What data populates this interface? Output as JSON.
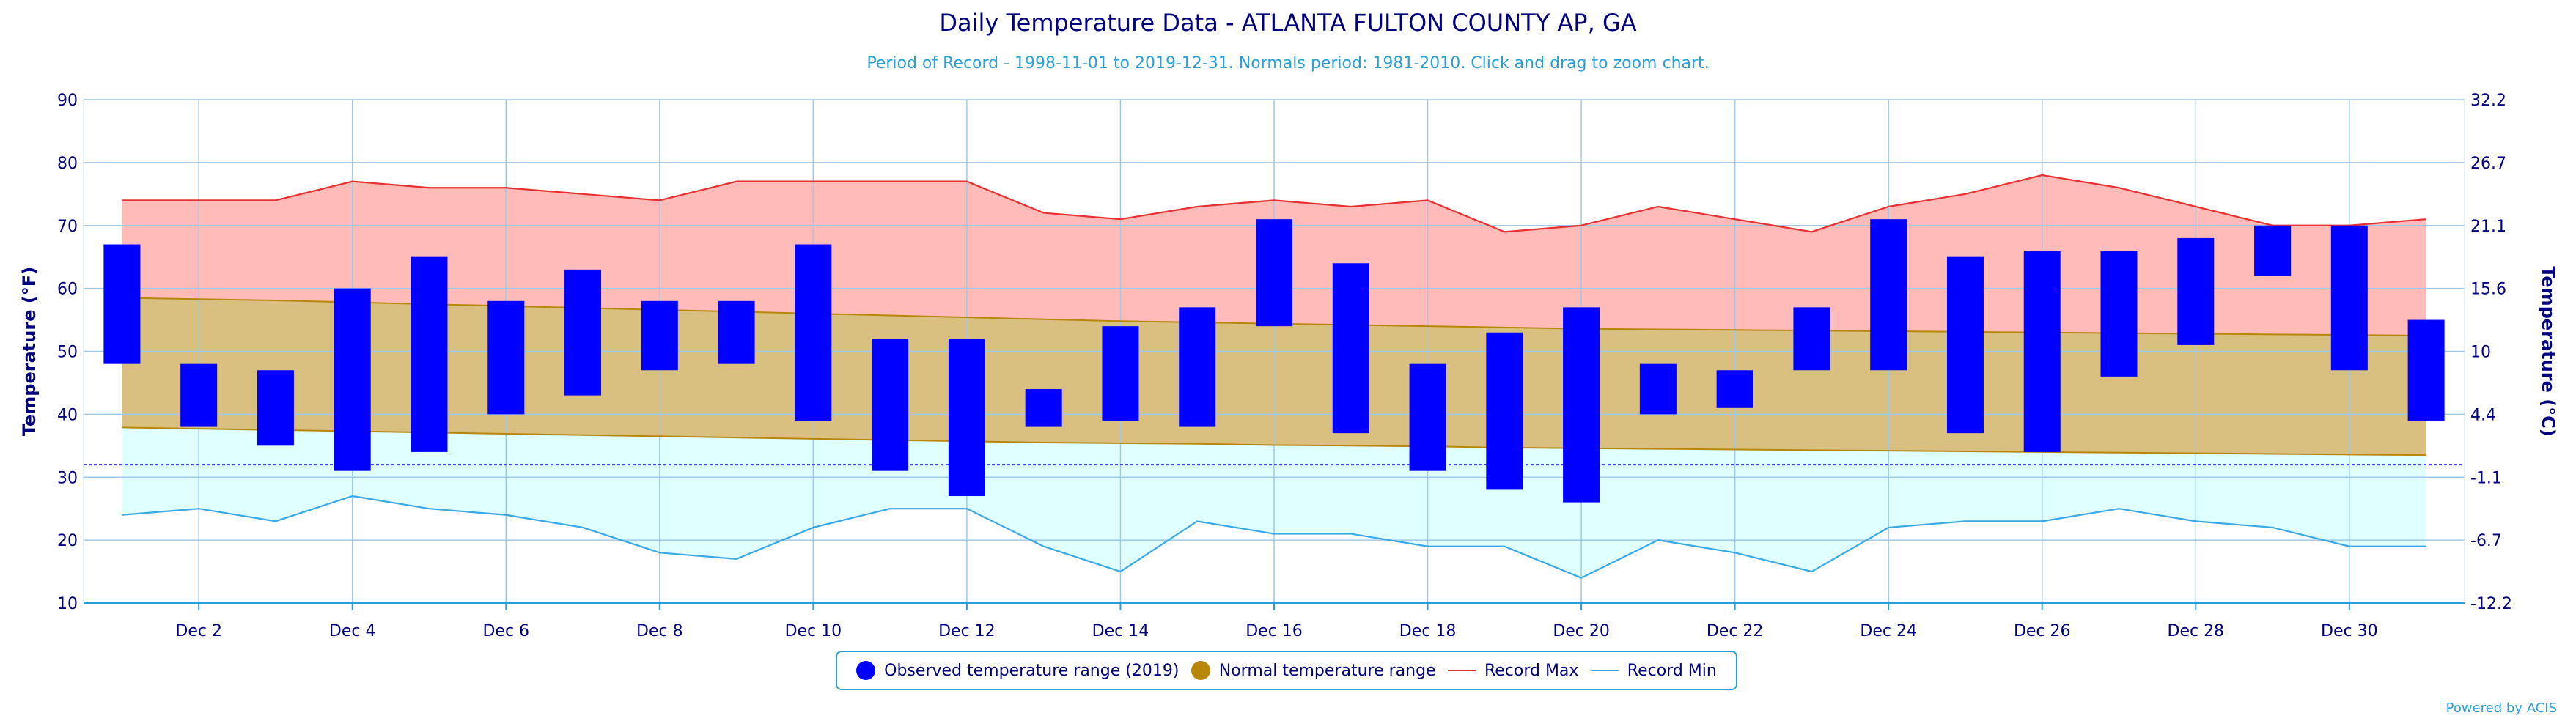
{
  "chart_data": {
    "type": "bar",
    "title": "Daily Temperature Data - ATLANTA FULTON COUNTY AP, GA",
    "subtitle": "Period of Record - 1998-11-01 to 2019-12-31. Normals period: 1981-2010. Click and drag to zoom chart.",
    "ylabel": "Temperature (°F)",
    "ylabel_right": "Temperature (°C)",
    "ylim": [
      10,
      90
    ],
    "yticks": [
      "10",
      "20",
      "30",
      "40",
      "50",
      "60",
      "70",
      "80",
      "90"
    ],
    "yticks_right": [
      "-12.2",
      "-6.7",
      "-1.1",
      "4.4",
      "10",
      "15.6",
      "21.1",
      "26.7",
      "32.2"
    ],
    "xlim": [
      0.5,
      31.5
    ],
    "x": [
      1,
      2,
      3,
      4,
      5,
      6,
      7,
      8,
      9,
      10,
      11,
      12,
      13,
      14,
      15,
      16,
      17,
      18,
      19,
      20,
      21,
      22,
      23,
      24,
      25,
      26,
      27,
      28,
      29,
      30,
      31
    ],
    "x_tick_days": [
      2,
      4,
      6,
      8,
      10,
      12,
      14,
      16,
      18,
      20,
      22,
      24,
      26,
      28,
      30
    ],
    "x_tick_labels": [
      "Dec 2",
      "Dec 4",
      "Dec 6",
      "Dec 8",
      "Dec 10",
      "Dec 12",
      "Dec 14",
      "Dec 16",
      "Dec 18",
      "Dec 20",
      "Dec 22",
      "Dec 24",
      "Dec 26",
      "Dec 28",
      "Dec 30"
    ],
    "freezing_line": 32,
    "grid": true,
    "legend_position": "bottom",
    "series": [
      {
        "name": "Observed temperature range (2019)",
        "type": "range-bar",
        "color": "#0000ff",
        "low": [
          48,
          38,
          35,
          31,
          34,
          40,
          43,
          47,
          48,
          39,
          31,
          27,
          38,
          39,
          38,
          54,
          37,
          31,
          28,
          26,
          40,
          41,
          47,
          47,
          37,
          34,
          46,
          51,
          62,
          47,
          39
        ],
        "high": [
          67,
          48,
          47,
          60,
          65,
          58,
          63,
          58,
          58,
          67,
          52,
          52,
          44,
          54,
          57,
          71,
          64,
          48,
          53,
          57,
          48,
          47,
          57,
          71,
          65,
          66,
          66,
          68,
          70,
          70,
          55
        ]
      },
      {
        "name": "Normal temperature range",
        "type": "range-area",
        "color": "#b8860b",
        "fill": "#d9c080",
        "low": [
          37.9,
          37.7,
          37.5,
          37.3,
          37.1,
          36.9,
          36.7,
          36.5,
          36.3,
          36.1,
          35.9,
          35.7,
          35.5,
          35.4,
          35.3,
          35.1,
          35.0,
          34.9,
          34.7,
          34.6,
          34.5,
          34.4,
          34.3,
          34.2,
          34.1,
          34.0,
          33.9,
          33.8,
          33.7,
          33.6,
          33.5
        ],
        "high": [
          58.5,
          58.3,
          58.1,
          57.8,
          57.5,
          57.2,
          56.9,
          56.6,
          56.3,
          56.0,
          55.7,
          55.4,
          55.1,
          54.8,
          54.6,
          54.4,
          54.2,
          54.0,
          53.8,
          53.6,
          53.5,
          53.4,
          53.3,
          53.2,
          53.1,
          53.0,
          52.9,
          52.8,
          52.7,
          52.6,
          52.5
        ]
      },
      {
        "name": "Record Max",
        "type": "line",
        "color": "#e83030",
        "fill": "#ffbbb8",
        "values": [
          74,
          74,
          74,
          77,
          76,
          76,
          75,
          74,
          77,
          77,
          77,
          77,
          72,
          71,
          73,
          74,
          73,
          74,
          69,
          70,
          73,
          71,
          69,
          73,
          75,
          78,
          76,
          73,
          70,
          70,
          71
        ]
      },
      {
        "name": "Record Min",
        "type": "line",
        "color": "#39a8e6",
        "fill": "#e0ffff",
        "values": [
          24,
          25,
          23,
          27,
          25,
          24,
          22,
          18,
          17,
          22,
          25,
          25,
          19,
          15,
          23,
          21,
          21,
          19,
          19,
          14,
          20,
          18,
          15,
          22,
          23,
          23,
          25,
          23,
          22,
          19,
          19
        ]
      }
    ],
    "legend": [
      {
        "label": "Observed temperature range (2019)",
        "color": "#0000ff"
      },
      {
        "label": "Normal temperature range",
        "color": "#b8860b"
      },
      {
        "label": "Record Max",
        "color": "#e83030"
      },
      {
        "label": "Record Min",
        "color": "#39a8e6"
      }
    ],
    "credit": "Powered by ACIS"
  }
}
